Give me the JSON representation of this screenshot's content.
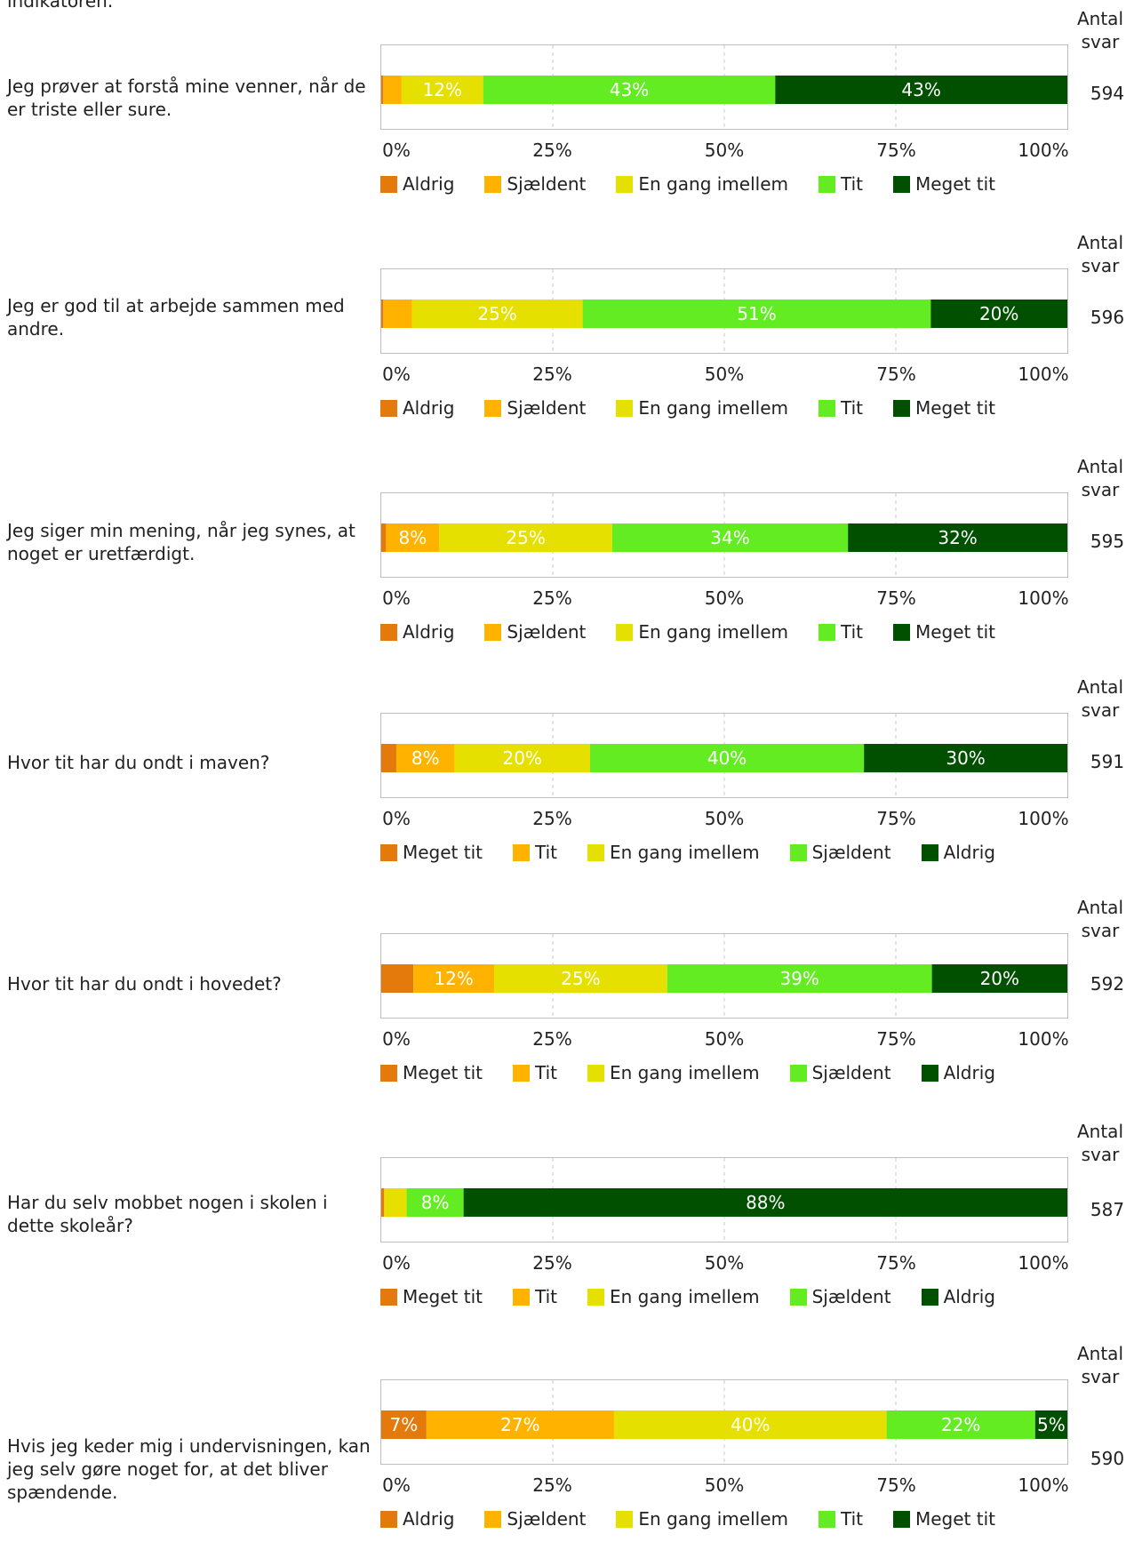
{
  "intro_fragment": "indikatoren.",
  "antal_label": "Antal\nsvar",
  "ticks": [
    "0%",
    "25%",
    "50%",
    "75%",
    "100%"
  ],
  "colors": {
    "c1": "#e37a0b",
    "c2": "#ffb300",
    "c3": "#e6e000",
    "c4": "#64ec22",
    "c5": "#005000"
  },
  "chart_data": [
    {
      "type": "bar",
      "orientation": "horizontal-stacked-100",
      "question": "Jeg prøver at forstå mine venner, når de er triste eller sure.",
      "count": "594",
      "categories": [
        "Aldrig",
        "Sjældent",
        "En gang imellem",
        "Tit",
        "Meget tit"
      ],
      "values": [
        0.3,
        2.7,
        12,
        43,
        43
      ],
      "labels": [
        "",
        "",
        "12%",
        "43%",
        "43%"
      ],
      "xlim": [
        0,
        100
      ]
    },
    {
      "type": "bar",
      "orientation": "horizontal-stacked-100",
      "question": "Jeg er god til at arbejde sammen med andre.",
      "count": "596",
      "categories": [
        "Aldrig",
        "Sjældent",
        "En gang imellem",
        "Tit",
        "Meget tit"
      ],
      "values": [
        0.3,
        4.2,
        25,
        51,
        20
      ],
      "labels": [
        "",
        "",
        "25%",
        "51%",
        "20%"
      ],
      "xlim": [
        0,
        100
      ]
    },
    {
      "type": "bar",
      "orientation": "horizontal-stacked-100",
      "question": "Jeg siger min mening, når jeg synes, at noget er uretfærdigt.",
      "count": "595",
      "categories": [
        "Aldrig",
        "Sjældent",
        "En gang imellem",
        "Tit",
        "Meget tit"
      ],
      "values": [
        0.7,
        7.8,
        25.3,
        34.5,
        32.1
      ],
      "labels": [
        "",
        "8%",
        "25%",
        "34%",
        "32%"
      ],
      "xlim": [
        0,
        100
      ]
    },
    {
      "type": "bar",
      "orientation": "horizontal-stacked-100",
      "question": "Hvor tit har du ondt i maven?",
      "count": "591",
      "categories": [
        "Meget tit",
        "Tit",
        "En gang imellem",
        "Sjældent",
        "Aldrig"
      ],
      "values": [
        2.2,
        8.5,
        19.8,
        40,
        29.7
      ],
      "labels": [
        "",
        "8%",
        "20%",
        "40%",
        "30%"
      ],
      "xlim": [
        0,
        100
      ]
    },
    {
      "type": "bar",
      "orientation": "horizontal-stacked-100",
      "question": "Hvor tit har du ondt i hovedet?",
      "count": "592",
      "categories": [
        "Meget tit",
        "Tit",
        "En gang imellem",
        "Sjældent",
        "Aldrig"
      ],
      "values": [
        4.7,
        11.8,
        25.3,
        38.7,
        19.8
      ],
      "labels": [
        "",
        "12%",
        "25%",
        "39%",
        "20%"
      ],
      "xlim": [
        0,
        100
      ]
    },
    {
      "type": "bar",
      "orientation": "horizontal-stacked-100",
      "question": "Har du selv mobbet nogen i skolen i dette skoleår?",
      "count": "587",
      "categories": [
        "Meget tit",
        "Tit",
        "En gang imellem",
        "Sjældent",
        "Aldrig"
      ],
      "values": [
        0.4,
        0.1,
        3.2,
        8.3,
        88
      ],
      "labels": [
        "",
        "",
        "",
        "8%",
        "88%"
      ],
      "xlim": [
        0,
        100
      ]
    },
    {
      "type": "bar",
      "orientation": "horizontal-stacked-100",
      "question": "Hvis jeg keder mig i undervisningen, kan jeg selv gøre noget for, at det bliver spændende.",
      "count": "590",
      "categories": [
        "Aldrig",
        "Sjældent",
        "En gang imellem",
        "Tit",
        "Meget tit"
      ],
      "values": [
        6.6,
        27.4,
        39.8,
        21.7,
        4.7
      ],
      "labels": [
        "7%",
        "27%",
        "40%",
        "22%",
        "5%"
      ],
      "xlim": [
        0,
        100
      ]
    }
  ]
}
